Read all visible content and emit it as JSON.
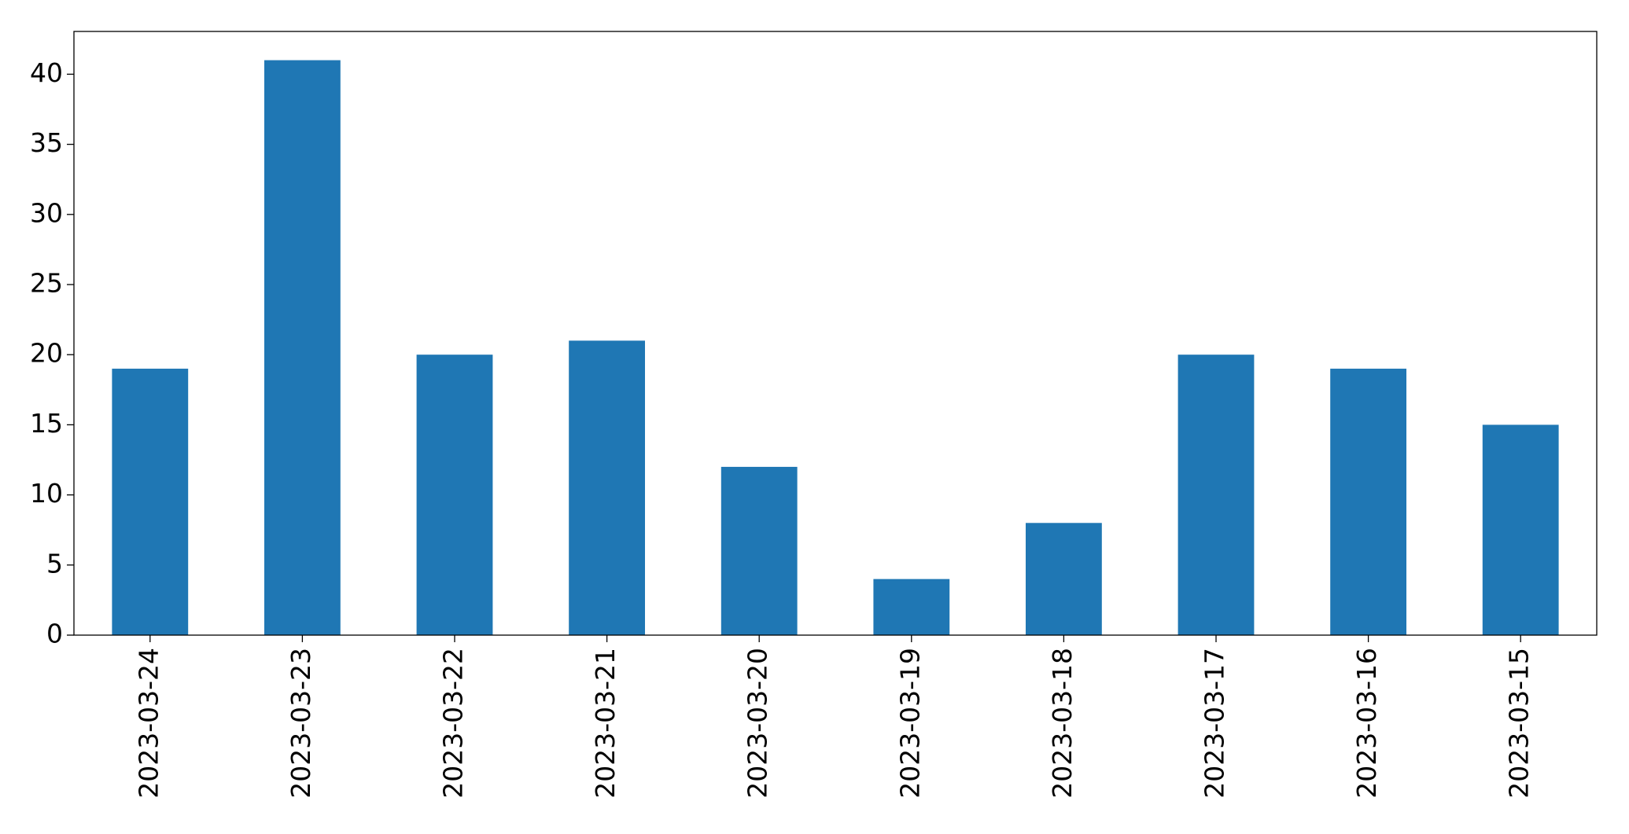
{
  "chart_data": {
    "type": "bar",
    "categories": [
      "2023-03-24",
      "2023-03-23",
      "2023-03-22",
      "2023-03-21",
      "2023-03-20",
      "2023-03-19",
      "2023-03-18",
      "2023-03-17",
      "2023-03-16",
      "2023-03-15"
    ],
    "values": [
      19,
      41,
      20,
      21,
      12,
      4,
      8,
      20,
      19,
      15
    ],
    "color": "#1f77b4",
    "ylim": [
      0,
      43.05
    ],
    "yticks": [
      0,
      5,
      10,
      15,
      20,
      25,
      30,
      35,
      40
    ],
    "grid": false
  }
}
